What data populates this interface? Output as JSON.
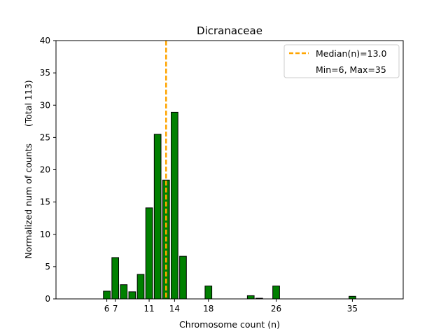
{
  "chart_data": {
    "type": "bar",
    "title": "Dicranaceae",
    "xlabel": "Chromosome count (n)",
    "ylabel": "Normalized num of counts      (Total 113)",
    "xlim": [
      0,
      41
    ],
    "ylim": [
      0,
      40
    ],
    "xticks": [
      6,
      7,
      11,
      14,
      18,
      26,
      35
    ],
    "yticks": [
      0,
      5,
      10,
      15,
      20,
      25,
      30,
      35,
      40
    ],
    "bar_color": "#008000",
    "bar_edge_color": "#000000",
    "x": [
      6,
      7,
      8,
      9,
      10,
      11,
      12,
      13,
      14,
      15,
      18,
      23,
      24,
      26,
      35
    ],
    "values": [
      1.2,
      6.4,
      2.2,
      1.1,
      3.8,
      14.1,
      25.5,
      18.4,
      28.9,
      6.6,
      2.0,
      0.5,
      0.1,
      2.0,
      0.4
    ],
    "median": {
      "value": 13.0,
      "color": "#FFA500",
      "label": "Median(n)=13.0"
    },
    "legend": {
      "placement": "top-right",
      "entries": [
        "Median(n)=13.0",
        "Min=6, Max=35"
      ]
    }
  }
}
